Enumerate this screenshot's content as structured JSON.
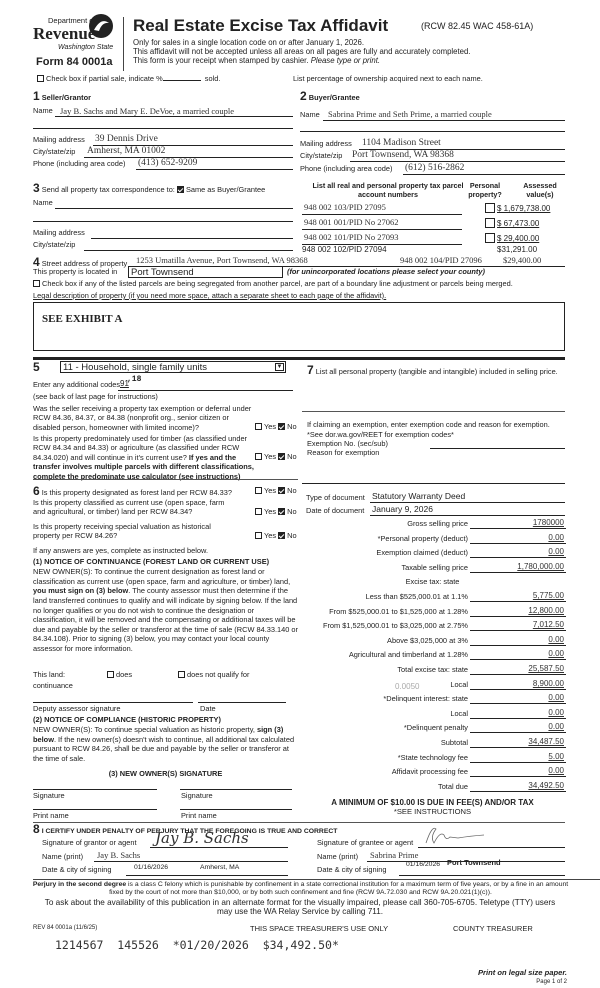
{
  "header": {
    "logo": {
      "dept": "Department of",
      "name": "Revenue",
      "state": "Washington State"
    },
    "form_number": "Form 84 0001a",
    "title": "Real Estate Excise Tax Affidavit",
    "citation": "(RCW 82.45 WAC 458-61A)",
    "notes": [
      "Only for sales in a single location code on or after January 1, 2026.",
      "This affidavit will not be accepted unless all areas on all pages are fully and accurately completed."
    ],
    "receipt_note": "This form is your receipt when stamped by cashier.",
    "receipt_note_italic": "Please type or print.",
    "partial_sale": {
      "label": "Check box if partial sale, indicate %",
      "suffix": "sold.",
      "checked": false
    },
    "ownership_note": "List percentage of ownership acquired next to each name."
  },
  "seller": {
    "number": "1",
    "heading": "Seller/Grantor",
    "name_label": "Name",
    "name": "Jay B. Sachs and Mary E. DeVoe, a married couple",
    "mailing_label": "Mailing address",
    "mailing": "39 Dennis Drive",
    "city_label": "City/state/zip",
    "city": "Amherst, MA 01002",
    "phone_label": "Phone (including area code)",
    "phone": "(413) 652-9209"
  },
  "buyer": {
    "number": "2",
    "heading": "Buyer/Grantee",
    "name_label": "Name",
    "name": "Sabrina Prime and Seth Prime, a married couple",
    "mailing_label": "Mailing address",
    "mailing": "1104 Madison Street",
    "city_label": "City/state/zip",
    "city": "Port Townsend, WA 98368",
    "phone_label": "Phone (including area code)",
    "phone": "(612) 516-2862"
  },
  "correspondence": {
    "number": "3",
    "label": "Send all property tax correspondence to:",
    "same_label": "Same as Buyer/Grantee",
    "same_checked": true,
    "name_label": "Name",
    "mailing_label": "Mailing address",
    "city_label": "City/state/zip"
  },
  "parcels": {
    "headers": [
      "List all real and personal property tax parcel account numbers",
      "Personal property?",
      "Assessed value(s)"
    ],
    "rows": [
      {
        "parcel": "948 002 103/PID 27095",
        "personal": false,
        "value": "$ 1,679,738.00"
      },
      {
        "parcel": "948 001 001/PID No 27062",
        "personal": false,
        "value": "$ 67,473.00"
      },
      {
        "parcel": "948 002 101/PID No 27093",
        "personal": false,
        "value": "$ 29,400.00"
      },
      {
        "parcel": "948 002 102/PID 27094",
        "value": "$31,291.00"
      },
      {
        "parcel": "948 002 104/PID 27096",
        "value": "$29,400.00"
      }
    ]
  },
  "property": {
    "number": "4",
    "street_label": "Street address of property",
    "street": "1253 Umatilla Avenue, Port Townsend, WA 98368",
    "located_label": "This property is located in",
    "located": "Port Townsend",
    "located_note": "(for unincorporated locations please select your county)",
    "segregated_label": "Check box if any of the listed parcels are being segregated from another parcel, are part of a boundary line adjustment or parcels being merged.",
    "segregated_checked": false,
    "legal_label": "Legal description of property (if you need more space, attach a separate sheet to each page of the affidavit).",
    "legal": "SEE EXHIBIT A"
  },
  "section5": {
    "number": "5",
    "use_code": "11 - Household, single family units",
    "additional_label": "Enter any additional codes",
    "additional_codes": "91",
    "additional_codes2": ",18",
    "see_back": "(see back of last page for instructions)",
    "q_exempt": "Was the seller receiving a property tax exemption or deferral under RCW 84.36, 84.37, or 84.38 (nonprofit org., senior citizen or disabled person, homeowner with limited income)?",
    "q_timber": "Is this property predominately used for timber (as classified under RCW 84.34 and 84.33) or agriculture (as classified under RCW 84.34.020) and will continue in it's current use?",
    "q_timber_bold": "If yes and the transfer involves multiple parcels with different classifications, complete the predominate use calculator (see instructions)",
    "yes": "Yes",
    "no": "No"
  },
  "section6": {
    "number": "6",
    "q_forest": "Is this property designated as forest land per RCW 84.33?",
    "q_current": "Is this property classified as current use (open space, farm and agricultural, or timber) land per RCW 84.34?",
    "q_historic": "Is this property receiving special valuation as historical property per RCW 84.26?",
    "if_yes": "If any answers are yes, complete as instructed below.",
    "notice1_title": "(1) NOTICE OF CONTINUANCE (FOREST LAND OR CURRENT USE)",
    "notice1_a": "NEW OWNER(S): To continue the current designation as forest land or classification as current use (open space, farm and agriculture, or timber) land, ",
    "notice1_bold": "you must sign on (3) below",
    "notice1_b": ". The county assessor must then determine if the land transferred continues  to qualify and will indicate by signing below. If the land no longer qualifies or you do not wish to continue the designation or classification, it will be removed and the compensating or additional taxes will be due and payable by the seller or transferor at the time of sale (RCW 84.33.140 or 84.34.108). Prior to signing (3) below, you may contact your local county assessor for more information.",
    "this_land": "This land:",
    "continuance": "continuance",
    "does": "does",
    "does_not": "does not qualify for",
    "deputy": "Deputy assessor signature",
    "date": "Date",
    "notice2_title": "(2) NOTICE OF COMPLIANCE (HISTORIC PROPERTY)",
    "notice2_a": "NEW OWNER(S): To continue special valuation as historic property, ",
    "notice2_bold": "sign (3) below",
    "notice2_b": ". If the new owner(s) doesn't wish to continue, all additional tax calculated pursuant to RCW 84.26, shall be due and payable by the seller or transferor at the time of sale.",
    "sig_title": "(3) NEW OWNER(S) SIGNATURE",
    "signature": "Signature",
    "print_name": "Print name"
  },
  "section7": {
    "number": "7",
    "label": "List all personal property (tangible and intangible) included in selling price.",
    "exempt_note": "If claiming an exemption, enter exemption code and reason for exemption. *See dor.wa.gov/REET for exemption codes*",
    "exempt_no": "Exemption No. (sec/sub)",
    "reason": "Reason for exemption",
    "doc_type_label": "Type of document",
    "doc_type": "Statutory Warranty Deed",
    "doc_date_label": "Date of document",
    "doc_date": "January 9, 2026"
  },
  "fees": {
    "rows": [
      {
        "label": "Gross selling price",
        "value": "1780000"
      },
      {
        "label": "*Personal property (deduct)",
        "value": "0.00"
      },
      {
        "label": "Exemption claimed (deduct)",
        "value": "0.00"
      },
      {
        "label": "Taxable selling price",
        "value": "1,780,000.00"
      },
      {
        "label": "Excise tax: state",
        "value": null
      },
      {
        "label": "Less than $525,000.01 at 1.1%",
        "value": "5,775.00"
      },
      {
        "label": "From $525,000.01 to $1,525,000 at 1.28%",
        "value": "12,800.00"
      },
      {
        "label": "From $1,525,000.01 to $3,025,000 at 2.75%",
        "value": "7,012.50"
      },
      {
        "label": "Above $3,025,000 at 3%",
        "value": "0.00"
      },
      {
        "label": "Agricultural and timberland at 1.28%",
        "value": "0.00"
      },
      {
        "label": "Total excise tax: state",
        "value": "25,587.50"
      },
      {
        "label": "Local",
        "value": "8,900.00",
        "rate": "0.0050"
      },
      {
        "label": "*Delinquent interest: state",
        "value": "0.00"
      },
      {
        "label": "Local",
        "value": "0.00"
      },
      {
        "label": "*Delinquent penalty",
        "value": "0.00"
      },
      {
        "label": "Subtotal",
        "value": "34,487.50"
      },
      {
        "label": "*State technology fee",
        "value": "5.00"
      },
      {
        "label": "Affidavit processing fee",
        "value": "0.00"
      },
      {
        "label": "Total due",
        "value": "34,492.50"
      }
    ],
    "minimum": "A MINIMUM OF $10.00 IS DUE IN FEE(S) AND/OR TAX",
    "see": "*SEE INSTRUCTIONS"
  },
  "section8": {
    "number": "8",
    "certify": "I CERTIFY UNDER PENALTY OF PERJURY THAT THE FOREGOING IS TRUE AND CORRECT",
    "grantor_sig_label": "Signature of grantor or agent",
    "grantor_sig": "Jay B. Sachs",
    "grantor_name_label": "Name (print)",
    "grantor_name": "Jay B. Sachs",
    "grantor_date_label": "Date & city of signing",
    "grantor_date": "01/16/2026",
    "grantor_city": "Amherst, MA",
    "grantee_sig_label": "Signature of grantee or agent",
    "grantee_name_label": "Name (print)",
    "grantee_name": "Sabrina Prime",
    "grantee_date_label": "Date & city of signing",
    "grantee_date": "01/16/2026",
    "grantee_city": "Port Townsend"
  },
  "footer": {
    "perjury_bold": "Perjury in the second degree",
    "perjury": " is a class C felony which is punishable by confinement in a state correctional institution for a maximum term of five years, or by a fine in an amount fixed by the court of not more than $10,000, or by both such confinement and fine (RCW 9A.72.030 and RCW 9A.20.021(1)(c)).",
    "alt_format": "To ask about the availability of this publication in an alternate format for the visually impaired, please call 360-705-6705. Teletype (TTY) users may use the WA Relay Service by calling 711.",
    "rev": "REV 84 0001a (11/6/25)",
    "treasurer_use": "THIS SPACE TREASURER'S USE ONLY",
    "county_treasurer": "COUNTY TREASURER",
    "receipt_stamp": "1214567  145526  *01/20/2026  $34,492.50*",
    "print_legal": "Print on legal size paper.",
    "page": "Page 1 of 2"
  }
}
